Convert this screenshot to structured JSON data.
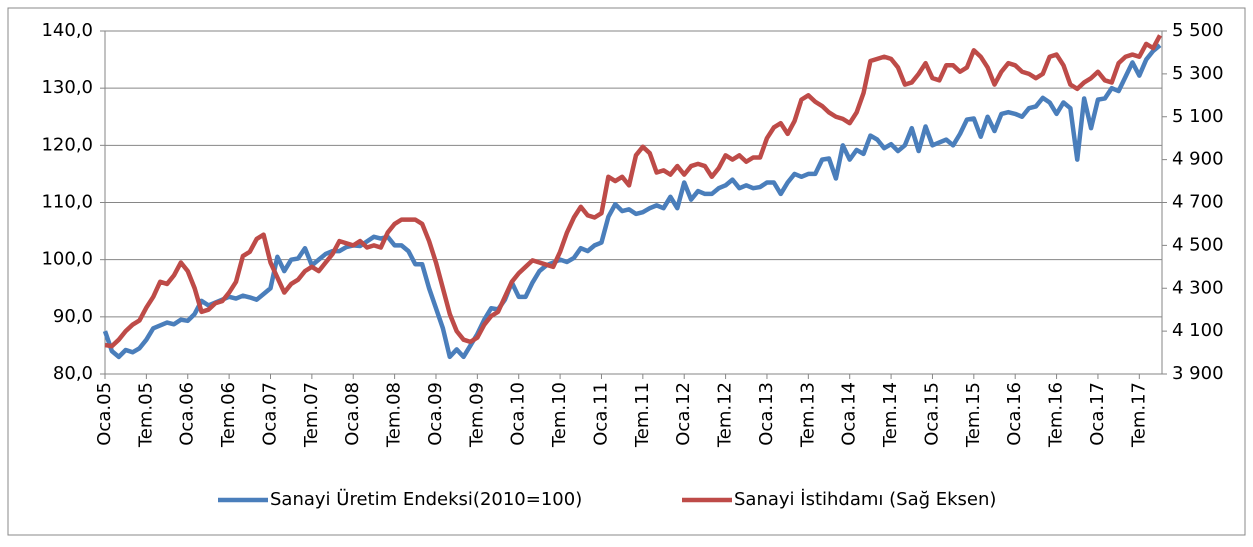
{
  "chart_data": {
    "type": "line",
    "categories": [
      "Oca.05",
      null,
      null,
      null,
      null,
      null,
      "Tem.05",
      null,
      null,
      null,
      null,
      null,
      "Oca.06",
      null,
      null,
      null,
      null,
      null,
      "Tem.06",
      null,
      null,
      null,
      null,
      null,
      "Oca.07",
      null,
      null,
      null,
      null,
      null,
      "Tem.07",
      null,
      null,
      null,
      null,
      null,
      "Oca.08",
      null,
      null,
      null,
      null,
      null,
      "Tem.08",
      null,
      null,
      null,
      null,
      null,
      "Oca.09",
      null,
      null,
      null,
      null,
      null,
      "Tem.09",
      null,
      null,
      null,
      null,
      null,
      "Oca.10",
      null,
      null,
      null,
      null,
      null,
      "Tem.10",
      null,
      null,
      null,
      null,
      null,
      "Oca.11",
      null,
      null,
      null,
      null,
      null,
      "Tem.11",
      null,
      null,
      null,
      null,
      null,
      "Oca.12",
      null,
      null,
      null,
      null,
      null,
      "Tem.12",
      null,
      null,
      null,
      null,
      null,
      "Oca.13",
      null,
      null,
      null,
      null,
      null,
      "Tem.13",
      null,
      null,
      null,
      null,
      null,
      "Oca.14",
      null,
      null,
      null,
      null,
      null,
      "Tem.14",
      null,
      null,
      null,
      null,
      null,
      "Oca.15",
      null,
      null,
      null,
      null,
      null,
      "Tem.15",
      null,
      null,
      null,
      null,
      null,
      "Oca.16",
      null,
      null,
      null,
      null,
      null,
      "Tem.16",
      null,
      null,
      null,
      null,
      null,
      "Oca.17",
      null,
      null,
      null,
      null,
      null,
      "Tem.17",
      null,
      null,
      null
    ],
    "series": [
      {
        "name": "Sanayi Üretim Endeksi(2010=100)",
        "color": "#4a7ebb",
        "axis": "y",
        "values": [
          87.5,
          84,
          83,
          84.2,
          83.8,
          84.5,
          86,
          88,
          88.5,
          89,
          88.7,
          89.5,
          89.3,
          90.5,
          92.8,
          92,
          92.5,
          93,
          93.5,
          93.2,
          93.7,
          93.4,
          93,
          94,
          95,
          100.5,
          98,
          100,
          100.2,
          102,
          99,
          100,
          101,
          101.5,
          101.5,
          102.2,
          102.5,
          102.4,
          103.2,
          104,
          103.7,
          104,
          102.5,
          102.5,
          101.5,
          99.2,
          99.2,
          95,
          91.5,
          88,
          83,
          84.3,
          83,
          85,
          87,
          89.5,
          91.5,
          91.3,
          93,
          96,
          93.5,
          93.5,
          96,
          98,
          99,
          99.5,
          100,
          99.6,
          100.3,
          102,
          101.5,
          102.5,
          103,
          107.5,
          109.7,
          108.5,
          108.8,
          108,
          108.3,
          109,
          109.5,
          109,
          111,
          109,
          113.5,
          110.5,
          112,
          111.5,
          111.5,
          112.5,
          113,
          114,
          112.5,
          113,
          112.5,
          112.7,
          113.5,
          113.5,
          111.5,
          113.5,
          115,
          114.5,
          115,
          115,
          117.5,
          117.7,
          114.2,
          120,
          117.5,
          119.2,
          118.5,
          121.7,
          121,
          119.5,
          120.2,
          119,
          120,
          123,
          119,
          123.3,
          120,
          120.5,
          121,
          120,
          122,
          124.5,
          124.7,
          121.5,
          125,
          122.5,
          125.5,
          125.8,
          125.5,
          125,
          126.5,
          126.8,
          128.3,
          127.5,
          125.5,
          127.5,
          126.5,
          117.5,
          128.2,
          123,
          128,
          128.2,
          130,
          129.5,
          132,
          134.5,
          132.2,
          135,
          136.5,
          137.5
        ]
      },
      {
        "name": "Sanayi İstihdamı (Sağ Eksen)",
        "color": "#be4b48",
        "axis": "y2",
        "values": [
          4035,
          4030,
          4060,
          4100,
          4130,
          4150,
          4210,
          4260,
          4330,
          4320,
          4360,
          4420,
          4380,
          4300,
          4190,
          4200,
          4230,
          4240,
          4280,
          4330,
          4450,
          4470,
          4530,
          4550,
          4420,
          4350,
          4280,
          4320,
          4340,
          4380,
          4400,
          4380,
          4420,
          4460,
          4520,
          4510,
          4500,
          4520,
          4490,
          4500,
          4490,
          4560,
          4600,
          4620,
          4620,
          4620,
          4600,
          4520,
          4420,
          4300,
          4180,
          4100,
          4060,
          4050,
          4070,
          4130,
          4170,
          4190,
          4260,
          4330,
          4370,
          4400,
          4430,
          4420,
          4410,
          4400,
          4470,
          4560,
          4630,
          4680,
          4640,
          4630,
          4650,
          4820,
          4800,
          4820,
          4780,
          4920,
          4960,
          4930,
          4840,
          4850,
          4830,
          4870,
          4830,
          4870,
          4880,
          4870,
          4820,
          4860,
          4920,
          4900,
          4920,
          4890,
          4910,
          4910,
          5000,
          5050,
          5070,
          5020,
          5080,
          5180,
          5200,
          5170,
          5150,
          5120,
          5100,
          5090,
          5070,
          5120,
          5210,
          5360,
          5370,
          5380,
          5370,
          5330,
          5250,
          5260,
          5300,
          5350,
          5280,
          5270,
          5340,
          5340,
          5310,
          5330,
          5410,
          5380,
          5330,
          5250,
          5310,
          5350,
          5340,
          5310,
          5300,
          5280,
          5300,
          5380,
          5390,
          5340,
          5250,
          5230,
          5260,
          5280,
          5310,
          5270,
          5260,
          5350,
          5380,
          5390,
          5380,
          5440,
          5420,
          5480
        ]
      }
    ],
    "ylim": [
      80,
      140
    ],
    "yticks": [
      {
        "value": 80,
        "label": "80,0"
      },
      {
        "value": 90,
        "label": "90,0"
      },
      {
        "value": 100,
        "label": "100,0"
      },
      {
        "value": 110,
        "label": "110,0"
      },
      {
        "value": 120,
        "label": "120,0"
      },
      {
        "value": 130,
        "label": "130,0"
      },
      {
        "value": 140,
        "label": "140,0"
      }
    ],
    "y2lim": [
      3900,
      5500
    ],
    "y2ticks": [
      {
        "value": 3900,
        "label": "3 900"
      },
      {
        "value": 4100,
        "label": "4 100"
      },
      {
        "value": 4300,
        "label": "4 300"
      },
      {
        "value": 4500,
        "label": "4 500"
      },
      {
        "value": 4700,
        "label": "4 700"
      },
      {
        "value": 4900,
        "label": "4 900"
      },
      {
        "value": 5100,
        "label": "5 100"
      },
      {
        "value": 5300,
        "label": "5 300"
      },
      {
        "value": 5500,
        "label": "5 500"
      }
    ],
    "grid": true,
    "legend": "bottom"
  }
}
